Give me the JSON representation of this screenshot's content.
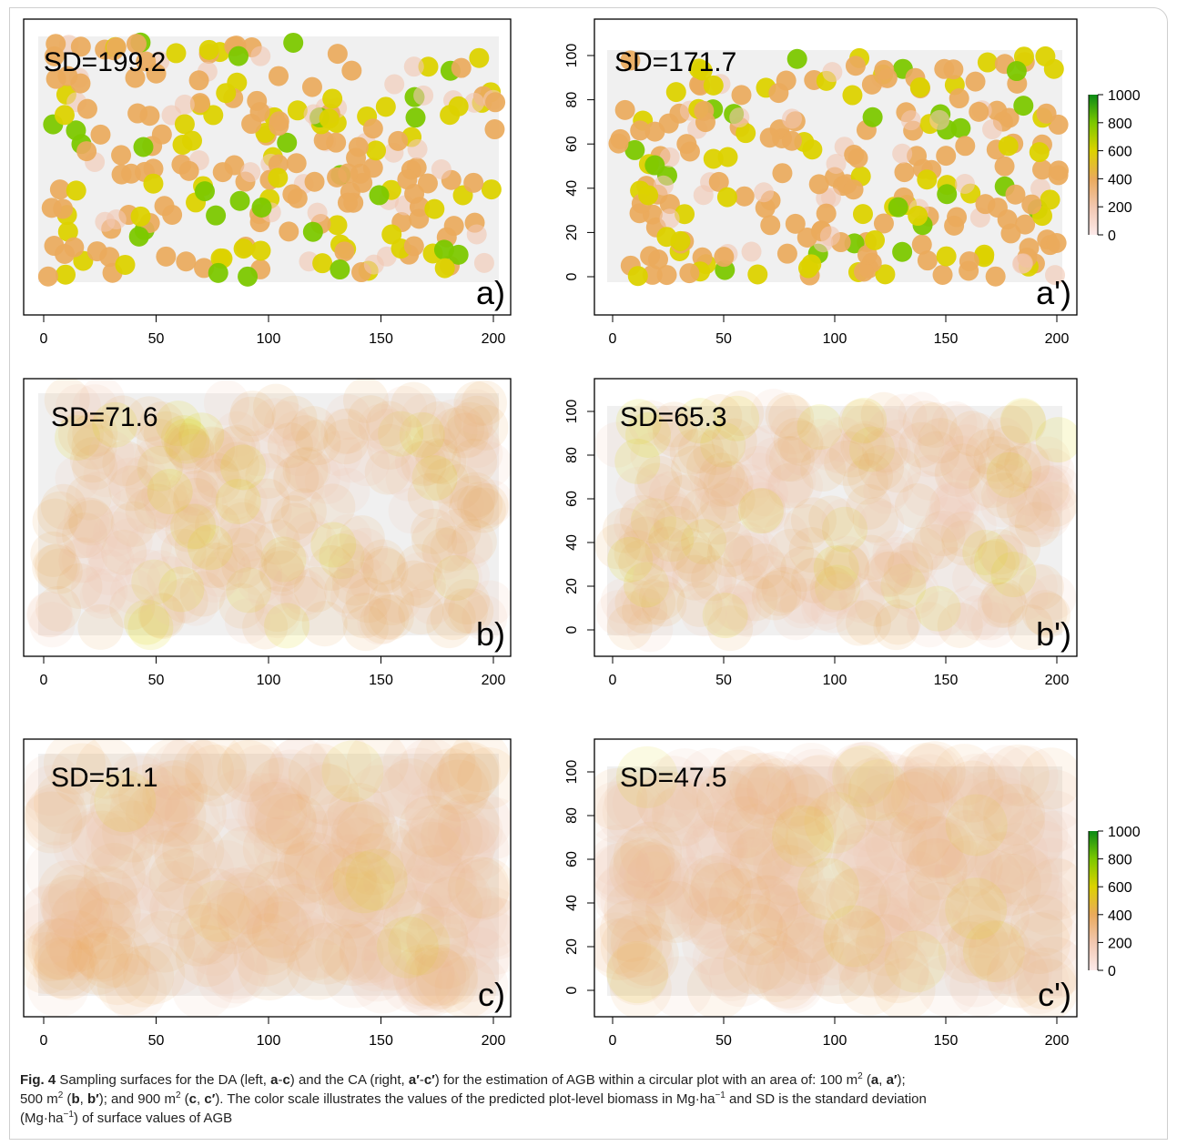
{
  "colorbar": {
    "ticks": [
      "1000",
      "800",
      "600",
      "400",
      "200",
      "0"
    ],
    "colors": [
      "#fdeaea",
      "#f2c7b0",
      "#eaaa5c",
      "#dcd200",
      "#7cc800",
      "#0a8a16"
    ]
  },
  "axes": {
    "xticks": [
      "0",
      "50",
      "100",
      "150",
      "200"
    ],
    "yticks": [
      "0",
      "20",
      "40",
      "60",
      "80",
      "100"
    ]
  },
  "chart_data": [
    {
      "type": "heatmap",
      "panel_label": "a)",
      "sd_label": "SD=199.2",
      "sd_value": 199.2,
      "plot_area_m2": 100,
      "design": "DA",
      "xlim": [
        0,
        200
      ],
      "ylim": [
        0,
        100
      ],
      "color_scale": [
        0,
        1000
      ],
      "show_yaxis": false
    },
    {
      "type": "heatmap",
      "panel_label": "a')",
      "sd_label": "SD=171.7",
      "sd_value": 171.7,
      "plot_area_m2": 100,
      "design": "CA",
      "xlim": [
        0,
        200
      ],
      "ylim": [
        0,
        100
      ],
      "color_scale": [
        0,
        1000
      ],
      "show_yaxis": true
    },
    {
      "type": "heatmap",
      "panel_label": "b)",
      "sd_label": "SD=71.6",
      "sd_value": 71.6,
      "plot_area_m2": 500,
      "design": "DA",
      "xlim": [
        0,
        200
      ],
      "ylim": [
        0,
        100
      ],
      "color_scale": [
        0,
        1000
      ],
      "show_yaxis": false
    },
    {
      "type": "heatmap",
      "panel_label": "b')",
      "sd_label": "SD=65.3",
      "sd_value": 65.3,
      "plot_area_m2": 500,
      "design": "CA",
      "xlim": [
        0,
        200
      ],
      "ylim": [
        0,
        100
      ],
      "color_scale": [
        0,
        1000
      ],
      "show_yaxis": true
    },
    {
      "type": "heatmap",
      "panel_label": "c)",
      "sd_label": "SD=51.1",
      "sd_value": 51.1,
      "plot_area_m2": 900,
      "design": "DA",
      "xlim": [
        0,
        200
      ],
      "ylim": [
        0,
        100
      ],
      "color_scale": [
        0,
        1000
      ],
      "show_yaxis": false
    },
    {
      "type": "heatmap",
      "panel_label": "c')",
      "sd_label": "SD=47.5",
      "sd_value": 47.5,
      "plot_area_m2": 900,
      "design": "CA",
      "xlim": [
        0,
        200
      ],
      "ylim": [
        0,
        100
      ],
      "color_scale": [
        0,
        1000
      ],
      "show_yaxis": true
    }
  ],
  "caption": {
    "fig_label": "Fig. 4",
    "t1": " Sampling surfaces for the DA (left, ",
    "b1": "a",
    "t2": "-",
    "b2": "c",
    "t3": ") and the CA (right, ",
    "b3": "a′",
    "t4": "-",
    "b4": "c′",
    "t5": ") for the estimation of AGB within a circular plot with an area of: 100 m",
    "sup1": "2",
    "t6": " (",
    "b5": "a",
    "t7": ", ",
    "b6": "a′",
    "t8": ");",
    "t9": "500 m",
    "sup2": "2",
    "t10": " (",
    "b7": "b",
    "t11": ", ",
    "b8": "b′",
    "t12": "); and 900 m",
    "sup3": "2",
    "t13": " (",
    "b9": "c",
    "t14": ", ",
    "b10": "c′",
    "t15": "). The color scale illustrates the values of the predicted plot-level biomass in Mg·ha",
    "sup4": "−1",
    "t16": " and SD is the standard deviation",
    "t17": "(Mg·ha",
    "sup5": "−1",
    "t18": ") of surface values of AGB"
  }
}
